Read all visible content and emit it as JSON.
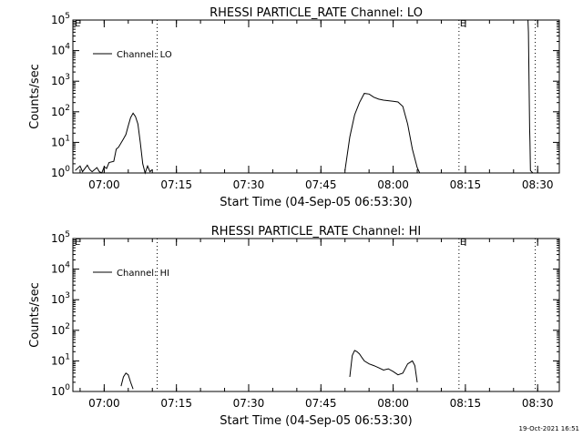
{
  "footer": {
    "timestamp": "19-Oct-2021 16:51"
  },
  "chart_data": [
    {
      "type": "line",
      "title": "RHESSI PARTICLE_RATE Channel: LO",
      "xlabel": "Start Time (04-Sep-05 06:53:30)",
      "ylabel": "Counts/sec",
      "yscale": "log",
      "xlim": [
        "06:53:30",
        "08:34:30"
      ],
      "ylim": [
        1,
        100000
      ],
      "xticks": [
        "07:00",
        "07:15",
        "07:30",
        "07:45",
        "08:00",
        "08:15",
        "08:30"
      ],
      "yticks": [
        {
          "value": 1,
          "base": "10",
          "exp": "0"
        },
        {
          "value": 10,
          "base": "10",
          "exp": "1"
        },
        {
          "value": 100,
          "base": "10",
          "exp": "2"
        },
        {
          "value": 1000,
          "base": "10",
          "exp": "3"
        },
        {
          "value": 10000,
          "base": "10",
          "exp": "4"
        },
        {
          "value": 100000,
          "base": "10",
          "exp": "5"
        }
      ],
      "legend": {
        "label": "Channel: LO",
        "placement": "top-left"
      },
      "vlines": [
        {
          "x": "07:11:00",
          "style": "dotted"
        },
        {
          "x": "08:13:40",
          "style": "dotted",
          "marker": "E"
        },
        {
          "x": "08:29:30",
          "style": "dotted"
        }
      ],
      "corner_marker": "E",
      "series": [
        {
          "x": [
            "06:54:00",
            "06:55:00",
            "06:55:30",
            "06:56:30",
            "06:57:00",
            "06:57:30",
            "06:58:30",
            "06:59:00",
            "06:59:30",
            "07:00:00",
            "07:00:30",
            "07:01:00",
            "07:02:00",
            "07:02:30",
            "07:03:00",
            "07:04:00",
            "07:04:30",
            "07:05:00",
            "07:05:30",
            "07:06:00",
            "07:06:30",
            "07:07:00",
            "07:07:30",
            "07:08:00",
            "07:08:30",
            "07:09:00",
            "07:09:30",
            "07:10:00"
          ],
          "y": [
            1.2,
            1.7,
            1.1,
            1.8,
            1.3,
            1.1,
            1.5,
            1.1,
            1.0,
            1.6,
            1.4,
            2.2,
            2.4,
            6,
            7,
            13,
            18,
            35,
            65,
            90,
            70,
            40,
            10,
            2,
            1,
            1.7,
            1.1,
            1.3
          ]
        },
        {
          "x": [
            "07:50:00",
            "07:51:00",
            "07:52:00",
            "07:53:00",
            "07:54:00",
            "07:55:00",
            "07:56:00",
            "07:57:00",
            "07:58:00",
            "07:59:00",
            "08:00:00",
            "08:01:00",
            "08:02:00",
            "08:03:00",
            "08:04:00",
            "08:05:00",
            "08:05:30"
          ],
          "y": [
            1.2,
            15,
            80,
            200,
            400,
            380,
            300,
            260,
            240,
            230,
            220,
            210,
            150,
            40,
            6,
            1.5,
            1.0
          ]
        },
        {
          "x": [
            "08:28:00",
            "08:28:05",
            "08:28:20",
            "08:28:25",
            "08:28:30",
            "08:29:00"
          ],
          "y": [
            100000,
            40000,
            30,
            10,
            1.2,
            1.0
          ]
        }
      ]
    },
    {
      "type": "line",
      "title": "RHESSI PARTICLE_RATE Channel: HI",
      "xlabel": "Start Time (04-Sep-05 06:53:30)",
      "ylabel": "Counts/sec",
      "yscale": "log",
      "xlim": [
        "06:53:30",
        "08:34:30"
      ],
      "ylim": [
        1,
        100000
      ],
      "xticks": [
        "07:00",
        "07:15",
        "07:30",
        "07:45",
        "08:00",
        "08:15",
        "08:30"
      ],
      "yticks": [
        {
          "value": 1,
          "base": "10",
          "exp": "0"
        },
        {
          "value": 10,
          "base": "10",
          "exp": "1"
        },
        {
          "value": 100,
          "base": "10",
          "exp": "2"
        },
        {
          "value": 1000,
          "base": "10",
          "exp": "3"
        },
        {
          "value": 10000,
          "base": "10",
          "exp": "4"
        },
        {
          "value": 100000,
          "base": "10",
          "exp": "5"
        }
      ],
      "legend": {
        "label": "Channel: HI",
        "placement": "top-left"
      },
      "vlines": [
        {
          "x": "07:11:00",
          "style": "dotted"
        },
        {
          "x": "08:13:40",
          "style": "dotted",
          "marker": "E"
        },
        {
          "x": "08:29:30",
          "style": "dotted"
        }
      ],
      "corner_marker": "E",
      "series": [
        {
          "x": [
            "07:03:30",
            "07:04:00",
            "07:04:30",
            "07:05:00",
            "07:05:30",
            "07:06:00"
          ],
          "y": [
            1.5,
            3,
            4,
            3.5,
            2,
            1.2
          ]
        },
        {
          "x": [
            "07:51:00",
            "07:51:30",
            "07:52:00",
            "07:52:30",
            "07:53:00",
            "07:53:30",
            "07:54:00",
            "07:55:00",
            "07:56:00",
            "07:57:00",
            "07:58:00",
            "07:59:00",
            "08:00:00",
            "08:01:00",
            "08:02:00",
            "08:03:00",
            "08:04:00",
            "08:04:30",
            "08:05:00"
          ],
          "y": [
            3,
            15,
            22,
            20,
            17,
            13,
            10,
            8,
            7,
            6,
            5,
            5.5,
            4.5,
            3.5,
            4,
            8,
            10,
            7,
            2
          ]
        }
      ]
    }
  ]
}
